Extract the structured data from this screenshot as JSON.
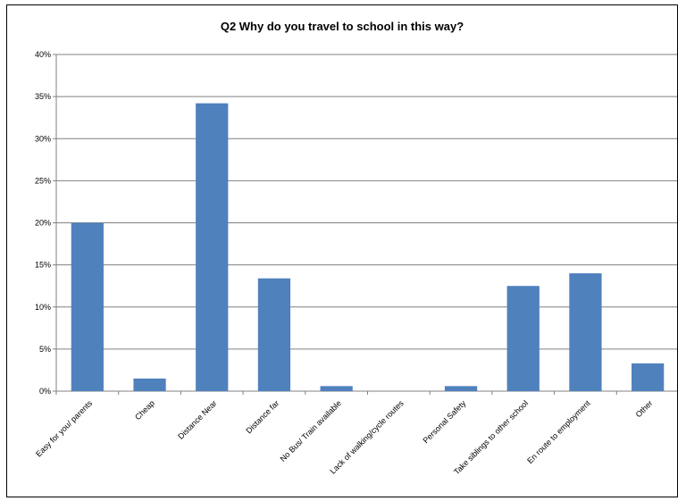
{
  "chart_data": {
    "type": "bar",
    "title": "Q2 Why do you travel to school in this way?",
    "xlabel": "",
    "ylabel": "",
    "ylim": [
      0,
      40
    ],
    "ytick_labels": [
      "0%",
      "5%",
      "10%",
      "15%",
      "20%",
      "25%",
      "30%",
      "35%",
      "40%"
    ],
    "categories": [
      "Easy for you/ parents",
      "Cheap",
      "Distance Near",
      "Distance far",
      "No Bus/ Train available",
      "Lack of walking/cycle routes",
      "Personal Safety",
      "Take siblings to other school",
      "En route to employment",
      "Other"
    ],
    "values": [
      20.0,
      1.5,
      34.2,
      13.4,
      0.6,
      0.0,
      0.6,
      12.5,
      14.0,
      3.3
    ],
    "grid": true,
    "legend": "none",
    "bar_color": "#4f81bd",
    "grid_color": "#808080"
  }
}
